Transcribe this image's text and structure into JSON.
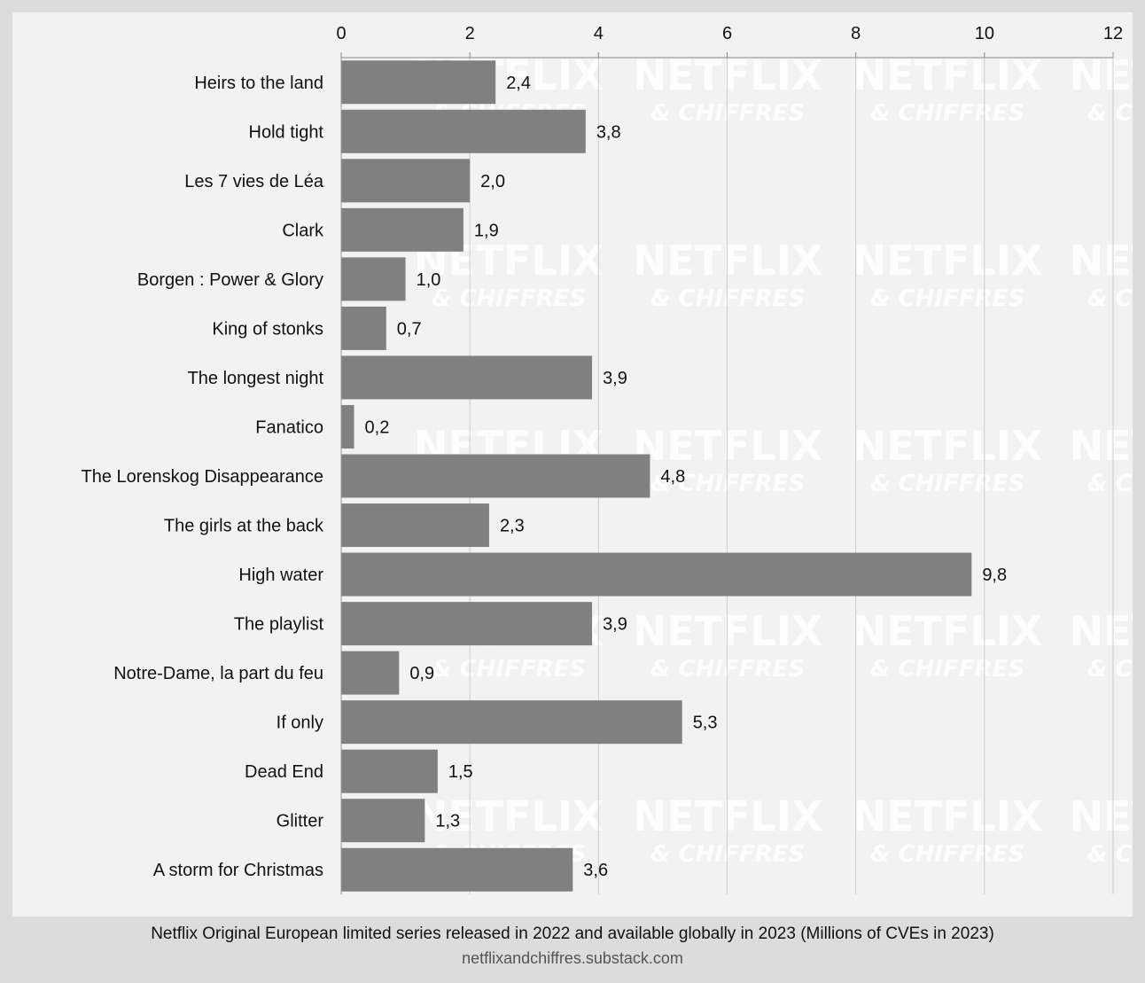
{
  "chart_data": {
    "type": "bar",
    "orientation": "horizontal",
    "categories": [
      "Heirs to the land",
      "Hold tight",
      "Les 7 vies de Léa",
      "Clark",
      "Borgen : Power & Glory",
      "King of stonks",
      "The longest night",
      "Fanatico",
      "The Lorenskog Disappearance",
      "The girls at the back",
      "High water",
      "The playlist",
      "Notre-Dame, la part du feu",
      "If only",
      "Dead End",
      "Glitter",
      "A storm for Christmas"
    ],
    "values": [
      2.4,
      3.8,
      2.0,
      1.9,
      1.0,
      0.7,
      3.9,
      0.2,
      4.8,
      2.3,
      9.8,
      3.9,
      0.9,
      5.3,
      1.5,
      1.3,
      3.6
    ],
    "value_labels": [
      "2,4",
      "3,8",
      "2,0",
      "1,9",
      "1,0",
      "0,7",
      "3,9",
      "0,2",
      "4,8",
      "2,3",
      "9,8",
      "3,9",
      "0,9",
      "5,3",
      "1,5",
      "1,3",
      "3,6"
    ],
    "xlim": [
      0,
      12
    ],
    "xticks": [
      0,
      2,
      4,
      6,
      8,
      10,
      12
    ],
    "tick_labels": [
      "0",
      "2",
      "4",
      "6",
      "8",
      "10",
      "12"
    ],
    "axis_position": "top",
    "grid": true,
    "bar_color": "#808080",
    "grid_color": "#cccccc",
    "background_color": "#f2f2f2"
  },
  "caption": "Netflix Original European limited series released in 2022 and available globally in 2023 (Millions of CVEs in 2023)",
  "source": "netflixandchiffres.substack.com",
  "watermark": {
    "line1": "NETFLIX",
    "line2": "& CHIFFRES"
  }
}
